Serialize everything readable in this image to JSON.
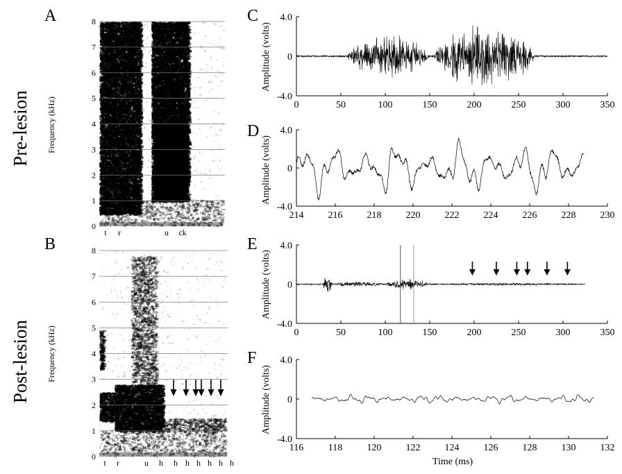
{
  "figure": {
    "row_labels": {
      "pre": "Pre-lesion",
      "post": "Post-lesion"
    }
  },
  "chart_data": [
    {
      "id": "A",
      "type": "heatmap",
      "panel_letter": "A",
      "title": "",
      "ylabel": "Frequency (kHz)",
      "ylim": [
        0,
        8
      ],
      "yticks": [
        "0",
        "1",
        "2",
        "3",
        "4",
        "5",
        "6",
        "7",
        "8"
      ],
      "phoneme_labels": [
        "t",
        "r",
        "u",
        "ck"
      ],
      "energy_blobs": [
        {
          "t0": 0.0,
          "t1": 0.33,
          "f0": 0.5,
          "f1": 8.0,
          "density": 0.85
        },
        {
          "t0": 0.42,
          "t1": 0.72,
          "f0": 1.0,
          "f1": 8.0,
          "density": 0.9
        },
        {
          "t0": 0.45,
          "t1": 0.7,
          "f0": 1.0,
          "f1": 4.0,
          "density": 1.0
        }
      ],
      "grid": true
    },
    {
      "id": "B",
      "type": "heatmap",
      "panel_letter": "B",
      "title": "",
      "ylabel": "Frequency (kHz)",
      "ylim": [
        0,
        8
      ],
      "yticks": [
        "0",
        "1",
        "2",
        "3",
        "4",
        "5",
        "6",
        "7",
        "8"
      ],
      "phoneme_labels": [
        "t",
        "r",
        "u",
        "h",
        "h",
        "h",
        "h",
        "h",
        "h",
        "h"
      ],
      "arrow_count": 6,
      "energy_blobs": [
        {
          "t0": 0.0,
          "t1": 0.12,
          "f0": 1.4,
          "f1": 2.5,
          "density": 0.8
        },
        {
          "t0": 0.0,
          "t1": 0.03,
          "f0": 3.4,
          "f1": 4.9,
          "density": 0.6
        },
        {
          "t0": 0.12,
          "t1": 0.5,
          "f0": 1.0,
          "f1": 2.8,
          "density": 0.85
        },
        {
          "t0": 0.25,
          "t1": 0.45,
          "f0": 2.8,
          "f1": 7.8,
          "density": 0.25
        },
        {
          "t0": 0.5,
          "t1": 1.0,
          "f0": 1.0,
          "f1": 1.5,
          "density": 0.3
        }
      ],
      "grid": true
    },
    {
      "id": "C",
      "type": "line",
      "panel_letter": "C",
      "ylabel": "Amplitude (volts)",
      "xlim": [
        0,
        350
      ],
      "ylim": [
        -4.0,
        4.0
      ],
      "xticks": [
        "0",
        "50",
        "100",
        "150",
        "200",
        "250",
        "300",
        "350"
      ],
      "yticks": [
        "4.0",
        "0",
        "-4.0"
      ],
      "bursts": [
        {
          "start": 57,
          "end": 150,
          "amplitude": 2.3
        },
        {
          "start": 155,
          "end": 268,
          "amplitude": 3.8
        }
      ],
      "background_noise": 0.08
    },
    {
      "id": "D",
      "type": "line",
      "panel_letter": "D",
      "ylabel": "Amplitude (volts)",
      "xlim": [
        214,
        230
      ],
      "ylim": [
        -4.0,
        4.0
      ],
      "xticks": [
        "214",
        "216",
        "218",
        "220",
        "222",
        "224",
        "226",
        "228",
        "230"
      ],
      "yticks": [
        "4.0",
        "0",
        "-4.0"
      ],
      "trace_range": [
        214,
        228.8
      ],
      "amplitude": 3.0,
      "period_ms": 1.6
    },
    {
      "id": "E",
      "type": "line",
      "panel_letter": "E",
      "ylabel": "Amplitude (volts)",
      "xlim": [
        0,
        350
      ],
      "ylim": [
        -4.0,
        4.0
      ],
      "xticks": [
        "0",
        "50",
        "100",
        "150",
        "200",
        "250",
        "300",
        "350"
      ],
      "yticks": [
        "4.0",
        "0",
        "-4.0"
      ],
      "bursts": [
        {
          "start": 30,
          "end": 40,
          "amplitude": 1.1
        },
        {
          "start": 40,
          "end": 100,
          "amplitude": 0.3
        },
        {
          "start": 100,
          "end": 150,
          "amplitude": 0.6
        },
        {
          "start": 150,
          "end": 325,
          "amplitude": 0.15
        }
      ],
      "trace_end": 325,
      "marker_lines": [
        117,
        132
      ],
      "arrows_at": [
        198,
        225,
        248,
        260,
        282,
        305
      ],
      "background_noise": 0.06
    },
    {
      "id": "F",
      "type": "line",
      "panel_letter": "F",
      "ylabel": "Amplitude (volts)",
      "xlabel": "Time (ms)",
      "xlim": [
        116,
        132
      ],
      "ylim": [
        -4.0,
        4.0
      ],
      "xticks": [
        "116",
        "118",
        "120",
        "122",
        "124",
        "126",
        "128",
        "130",
        "132"
      ],
      "yticks": [
        "4.0",
        "0",
        "-4.0"
      ],
      "trace_range": [
        116.8,
        131.3
      ],
      "amplitude": 0.45
    }
  ]
}
